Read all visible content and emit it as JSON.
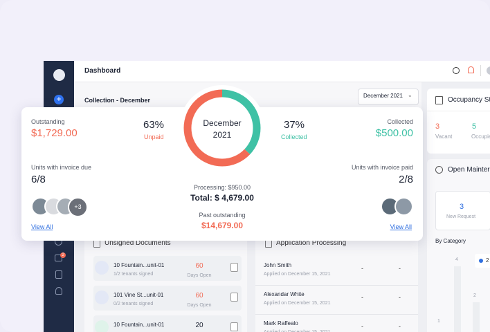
{
  "header": {
    "title": "Dashboard"
  },
  "sidebar": {
    "badge": "2"
  },
  "collection": {
    "title": "Collection - December",
    "dropdown": "December 2021"
  },
  "summary": {
    "outstanding_label": "Outstanding",
    "outstanding_value": "$1,729.00",
    "unpaid": {
      "value": 63,
      "label": "63%"
    },
    "unpaid_label": "Unpaid",
    "donut_month": "December",
    "donut_year": "2021",
    "collected": {
      "value": 37,
      "label": "37%"
    },
    "collected_label": "Collected",
    "collected_title": "Collected",
    "collected_value": "$500.00",
    "due_label": "Units with invoice due",
    "due_value": "6/8",
    "paid_label": "Units with invoice paid",
    "paid_value": "2/8",
    "avatars_more": "+3",
    "view_all_left": "View All",
    "view_all_right": "View All",
    "processing": "Processing: $950.00",
    "total": "Total: $ 4,679.00",
    "past_label": "Past outstanding",
    "past_value": "$14,679.00"
  },
  "occupancy": {
    "title": "Occupancy St",
    "vacant_count": "3",
    "vacant_label": "Vacant",
    "occupied_count": "5",
    "occupied_label": "Occupie"
  },
  "maintenance": {
    "title": "Open Mainter",
    "count": "3",
    "count_label": "New Request",
    "category_title": "By Category",
    "bar_labels": [
      "4",
      "2",
      "1"
    ],
    "legend": "2"
  },
  "unsigned_documents": {
    "title": "Unsigned Documents",
    "rows": [
      {
        "name": "10 Fountain...unit-01",
        "status": "1/2 tenants signed",
        "days": "60",
        "days_label": "Days Open"
      },
      {
        "name": "101 Vine St...unit-01",
        "status": "0/2 tenants signed",
        "days": "60",
        "days_label": "Days Open"
      },
      {
        "name": "10 Fountain...unit-01",
        "days": "20"
      }
    ]
  },
  "application_processing": {
    "title": "Application Processing",
    "rows": [
      {
        "name": "John Smith",
        "date": "Applied on December 15, 2021",
        "col1": "-",
        "col2": "-"
      },
      {
        "name": "Alexandar White",
        "date": "Applied on December 15, 2021",
        "col1": "-",
        "col2": "-"
      },
      {
        "name": "Mark Raffealo",
        "date": "Applied on December 15, 2021",
        "col1": "-",
        "col2": "-"
      }
    ]
  }
}
